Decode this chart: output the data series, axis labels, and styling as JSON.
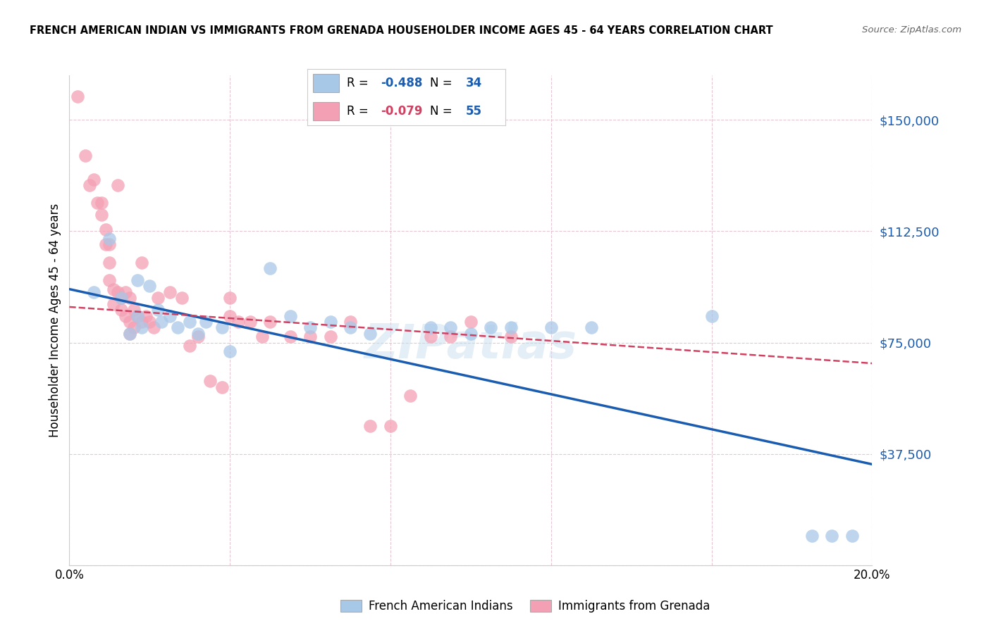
{
  "title": "FRENCH AMERICAN INDIAN VS IMMIGRANTS FROM GRENADA HOUSEHOLDER INCOME AGES 45 - 64 YEARS CORRELATION CHART",
  "source": "Source: ZipAtlas.com",
  "ylabel": "Householder Income Ages 45 - 64 years",
  "xlim": [
    0.0,
    0.2
  ],
  "ylim": [
    0,
    165000
  ],
  "yticks": [
    0,
    37500,
    75000,
    112500,
    150000
  ],
  "ytick_labels": [
    "",
    "$37,500",
    "$75,000",
    "$112,500",
    "$150,000"
  ],
  "xticks": [
    0.0,
    0.04,
    0.08,
    0.12,
    0.16,
    0.2
  ],
  "xtick_labels": [
    "0.0%",
    "",
    "",
    "",
    "",
    "20.0%"
  ],
  "blue_R": -0.488,
  "blue_N": 34,
  "pink_R": -0.079,
  "pink_N": 55,
  "blue_color": "#a8c8e8",
  "pink_color": "#f4a0b4",
  "blue_line_color": "#1a5cb0",
  "pink_line_color": "#d04060",
  "watermark": "ZIPatlas",
  "blue_scatter_x": [
    0.006,
    0.01,
    0.013,
    0.015,
    0.017,
    0.017,
    0.018,
    0.02,
    0.022,
    0.023,
    0.025,
    0.027,
    0.03,
    0.032,
    0.034,
    0.038,
    0.04,
    0.05,
    0.055,
    0.06,
    0.065,
    0.07,
    0.075,
    0.09,
    0.095,
    0.1,
    0.105,
    0.11,
    0.12,
    0.13,
    0.16,
    0.185,
    0.19,
    0.195
  ],
  "blue_scatter_y": [
    92000,
    110000,
    90000,
    78000,
    84000,
    96000,
    80000,
    94000,
    86000,
    82000,
    84000,
    80000,
    82000,
    78000,
    82000,
    80000,
    72000,
    100000,
    84000,
    80000,
    82000,
    80000,
    78000,
    80000,
    80000,
    78000,
    80000,
    80000,
    80000,
    80000,
    84000,
    10000,
    10000,
    10000
  ],
  "pink_scatter_x": [
    0.002,
    0.004,
    0.005,
    0.006,
    0.007,
    0.008,
    0.008,
    0.009,
    0.009,
    0.01,
    0.01,
    0.01,
    0.011,
    0.011,
    0.012,
    0.012,
    0.013,
    0.013,
    0.014,
    0.014,
    0.015,
    0.015,
    0.015,
    0.016,
    0.016,
    0.017,
    0.018,
    0.018,
    0.019,
    0.02,
    0.021,
    0.022,
    0.025,
    0.028,
    0.03,
    0.032,
    0.035,
    0.038,
    0.04,
    0.04,
    0.042,
    0.045,
    0.048,
    0.05,
    0.055,
    0.06,
    0.065,
    0.07,
    0.075,
    0.08,
    0.085,
    0.09,
    0.095,
    0.1,
    0.11
  ],
  "pink_scatter_y": [
    158000,
    138000,
    128000,
    130000,
    122000,
    122000,
    118000,
    113000,
    108000,
    108000,
    102000,
    96000,
    93000,
    88000,
    128000,
    92000,
    90000,
    86000,
    92000,
    84000,
    90000,
    82000,
    78000,
    86000,
    80000,
    84000,
    102000,
    82000,
    84000,
    82000,
    80000,
    90000,
    92000,
    90000,
    74000,
    77000,
    62000,
    60000,
    90000,
    84000,
    82000,
    82000,
    77000,
    82000,
    77000,
    77000,
    77000,
    82000,
    47000,
    47000,
    57000,
    77000,
    77000,
    82000,
    77000
  ],
  "blue_line_x0": 0.0,
  "blue_line_y0": 93000,
  "blue_line_x1": 0.2,
  "blue_line_y1": 34000,
  "pink_line_x0": 0.0,
  "pink_line_y0": 87000,
  "pink_line_x1": 0.2,
  "pink_line_y1": 68000
}
